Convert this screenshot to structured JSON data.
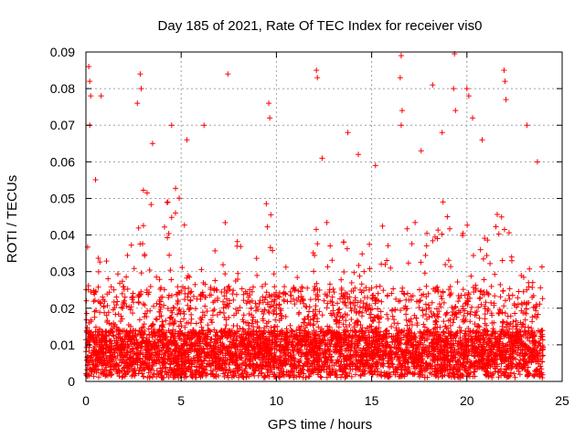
{
  "chart_data": {
    "type": "scatter",
    "title": "Day 185 of 2021, Rate Of TEC Index for receiver vis0",
    "xlabel": "GPS time / hours",
    "ylabel": "ROTI / TECUs",
    "xlim": [
      0,
      25
    ],
    "ylim": [
      0,
      0.09
    ],
    "x_ticks": [
      0,
      5,
      10,
      15,
      20,
      25
    ],
    "y_ticks": [
      0,
      0.01,
      0.02,
      0.03,
      0.04,
      0.05,
      0.06,
      0.07,
      0.08,
      0.09
    ],
    "x_tick_labels": [
      "0",
      "5",
      "10",
      "15",
      "20",
      "25"
    ],
    "y_tick_labels": [
      "0",
      "0.01",
      "0.02",
      "0.03",
      "0.04",
      "0.05",
      "0.06",
      "0.07",
      "0.08",
      "0.09"
    ],
    "grid": true,
    "marker": "+",
    "color": "#ff0000",
    "notable_points": [
      {
        "x": 0.15,
        "y": 0.086
      },
      {
        "x": 0.2,
        "y": 0.082
      },
      {
        "x": 0.25,
        "y": 0.078
      },
      {
        "x": 0.2,
        "y": 0.07
      },
      {
        "x": 0.8,
        "y": 0.078
      },
      {
        "x": 2.85,
        "y": 0.084
      },
      {
        "x": 2.9,
        "y": 0.08
      },
      {
        "x": 2.7,
        "y": 0.076
      },
      {
        "x": 7.45,
        "y": 0.084
      },
      {
        "x": 9.6,
        "y": 0.076
      },
      {
        "x": 9.65,
        "y": 0.072
      },
      {
        "x": 12.1,
        "y": 0.085
      },
      {
        "x": 12.15,
        "y": 0.083
      },
      {
        "x": 16.55,
        "y": 0.089
      },
      {
        "x": 16.5,
        "y": 0.083
      },
      {
        "x": 16.6,
        "y": 0.074
      },
      {
        "x": 16.55,
        "y": 0.07
      },
      {
        "x": 18.2,
        "y": 0.081
      },
      {
        "x": 19.35,
        "y": 0.0895
      },
      {
        "x": 19.3,
        "y": 0.08
      },
      {
        "x": 19.4,
        "y": 0.074
      },
      {
        "x": 20.0,
        "y": 0.08
      },
      {
        "x": 20.1,
        "y": 0.078
      },
      {
        "x": 20.3,
        "y": 0.072
      },
      {
        "x": 21.95,
        "y": 0.085
      },
      {
        "x": 22.0,
        "y": 0.082
      },
      {
        "x": 22.05,
        "y": 0.077
      },
      {
        "x": 23.15,
        "y": 0.07
      },
      {
        "x": 23.7,
        "y": 0.06
      },
      {
        "x": 13.75,
        "y": 0.068
      },
      {
        "x": 14.3,
        "y": 0.062
      },
      {
        "x": 15.2,
        "y": 0.059
      },
      {
        "x": 4.5,
        "y": 0.07
      },
      {
        "x": 6.2,
        "y": 0.07
      },
      {
        "x": 3.5,
        "y": 0.065
      },
      {
        "x": 5.3,
        "y": 0.066
      },
      {
        "x": 12.4,
        "y": 0.061
      },
      {
        "x": 17.6,
        "y": 0.063
      },
      {
        "x": 18.7,
        "y": 0.068
      },
      {
        "x": 20.8,
        "y": 0.066
      }
    ]
  }
}
